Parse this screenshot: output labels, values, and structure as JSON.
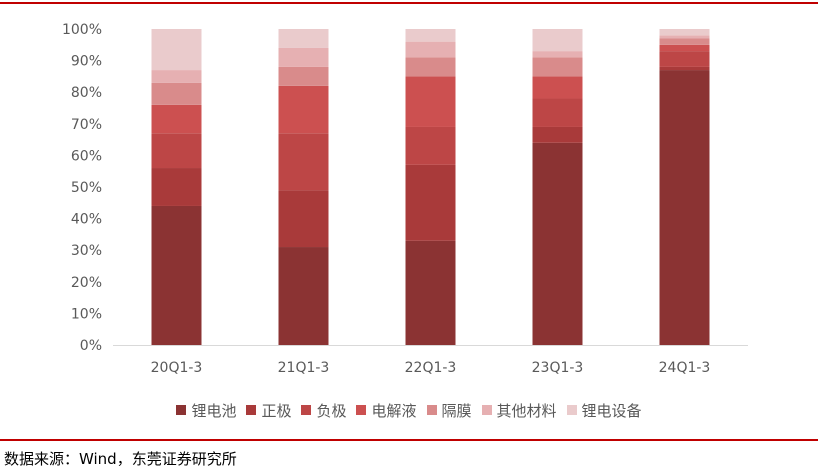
{
  "source": "数据来源：Wind，东莞证券研究所",
  "colors": {
    "rule": "#c00000",
    "series": [
      "#8b3333",
      "#a93a3a",
      "#bd4646",
      "#cc5050",
      "#d98b8b",
      "#e6b0b2",
      "#eacbcc"
    ]
  },
  "chart_data": {
    "type": "bar",
    "stacked": true,
    "categories": [
      "20Q1-3",
      "21Q1-3",
      "22Q1-3",
      "23Q1-3",
      "24Q1-3"
    ],
    "yticks": [
      "0%",
      "10%",
      "20%",
      "30%",
      "40%",
      "50%",
      "60%",
      "70%",
      "80%",
      "90%",
      "100%"
    ],
    "ylim": [
      0,
      100
    ],
    "series": [
      {
        "name": "锂电池",
        "values": [
          44,
          31,
          33,
          64,
          87
        ]
      },
      {
        "name": "正极",
        "values": [
          12,
          18,
          24,
          5,
          1
        ]
      },
      {
        "name": "负极",
        "values": [
          11,
          18,
          12,
          9,
          5
        ]
      },
      {
        "name": "电解液",
        "values": [
          9,
          15,
          16,
          7,
          2
        ]
      },
      {
        "name": "隔膜",
        "values": [
          7,
          6,
          6,
          6,
          2
        ]
      },
      {
        "name": "其他材料",
        "values": [
          4,
          6,
          5,
          2,
          1
        ]
      },
      {
        "name": "锂电设备",
        "values": [
          13,
          6,
          4,
          7,
          2
        ]
      }
    ],
    "legend_position": "bottom",
    "grid": false
  }
}
